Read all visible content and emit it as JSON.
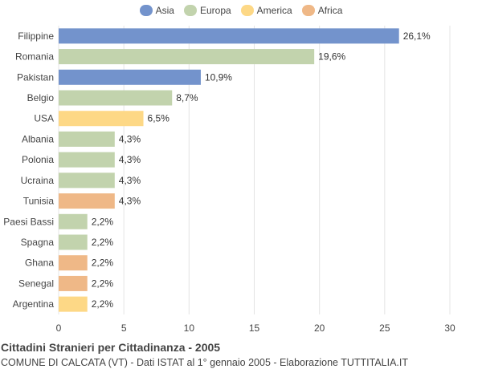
{
  "legend": [
    {
      "label": "Asia",
      "color": "#7393cc"
    },
    {
      "label": "Europa",
      "color": "#c2d3ad"
    },
    {
      "label": "America",
      "color": "#fdd886"
    },
    {
      "label": "Africa",
      "color": "#efb887"
    }
  ],
  "footer": {
    "title": "Cittadini Stranieri per Cittadinanza - 2005",
    "subtitle": "COMUNE DI CALCATA (VT) - Dati ISTAT al 1° gennaio 2005 - Elaborazione TUTTITALIA.IT"
  },
  "chart_data": {
    "type": "bar",
    "orientation": "horizontal",
    "xlim": [
      0,
      30
    ],
    "xticks": [
      0,
      5,
      10,
      15,
      20,
      25,
      30
    ],
    "grid": true,
    "legend_position": "top",
    "categories": [
      "Filippine",
      "Romania",
      "Pakistan",
      "Belgio",
      "USA",
      "Albania",
      "Polonia",
      "Ucraina",
      "Tunisia",
      "Paesi Bassi",
      "Spagna",
      "Ghana",
      "Senegal",
      "Argentina"
    ],
    "values": [
      26.1,
      19.6,
      10.9,
      8.7,
      6.5,
      4.3,
      4.3,
      4.3,
      4.3,
      2.2,
      2.2,
      2.2,
      2.2,
      2.2
    ],
    "value_labels": [
      "26,1%",
      "19,6%",
      "10,9%",
      "8,7%",
      "6,5%",
      "4,3%",
      "4,3%",
      "4,3%",
      "4,3%",
      "2,2%",
      "2,2%",
      "2,2%",
      "2,2%",
      "2,2%"
    ],
    "groups": [
      "Asia",
      "Europa",
      "Asia",
      "Europa",
      "America",
      "Europa",
      "Europa",
      "Europa",
      "Africa",
      "Europa",
      "Europa",
      "Africa",
      "Africa",
      "America"
    ]
  }
}
